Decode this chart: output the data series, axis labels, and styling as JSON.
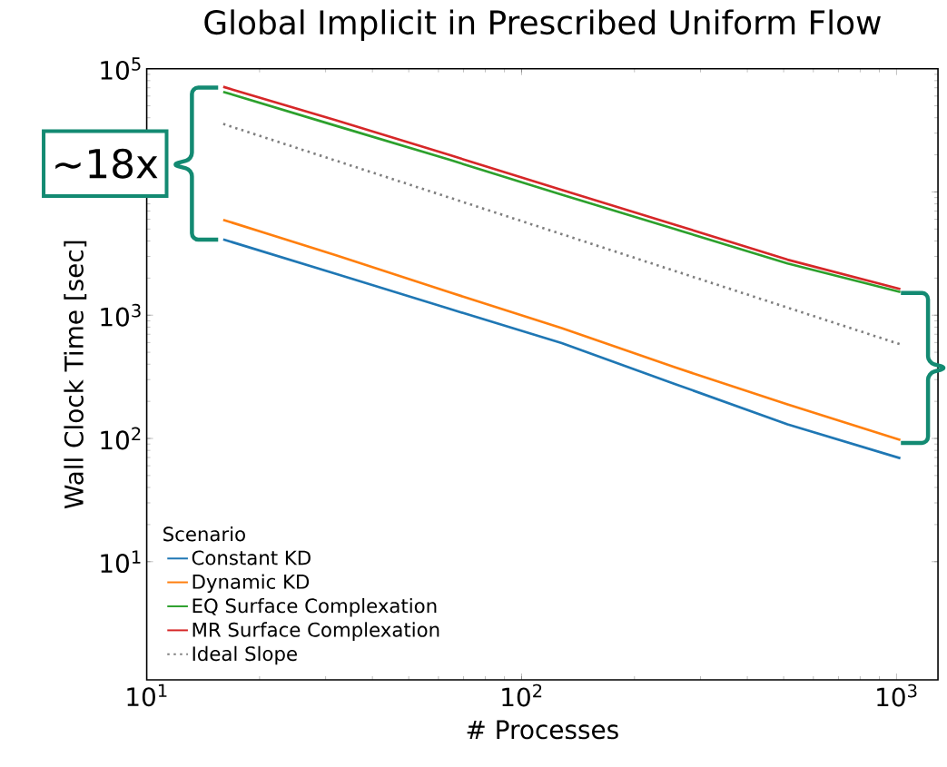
{
  "chart_data": {
    "type": "line",
    "title": "Global Implicit in Prescribed Uniform Flow",
    "xlabel": "# Processes",
    "ylabel": "Wall Clock Time [sec]",
    "legend_title": "Scenario",
    "legend": "bottom left",
    "log": "xy",
    "grid": false,
    "marker": "none",
    "x": [
      16,
      32,
      64,
      128,
      256,
      512,
      1024
    ],
    "xlim": [
      10,
      1290
    ],
    "ylim": [
      1.1,
      100000
    ],
    "xticks": [
      {
        "value": 10,
        "label": "10$^{1}$"
      },
      {
        "value": 100,
        "label": "10$^{2}$"
      },
      {
        "value": 1000,
        "label": "10$^{3}$"
      }
    ],
    "yticks": [
      {
        "value": 10,
        "label": "10$^{1}$"
      },
      {
        "value": 100,
        "label": "10$^{2}$"
      },
      {
        "value": 1000,
        "label": "10$^{3}$"
      },
      {
        "value": 10000,
        "label": null
      },
      {
        "value": 100000,
        "label": "10$^{5}$"
      }
    ],
    "series": [
      {
        "name": "Constant KD",
        "color": "#1f77b4",
        "values": [
          4120,
          2160,
          1130,
          593,
          277,
          130,
          69
        ]
      },
      {
        "name": "Dynamic KD",
        "color": "#ff7f0e",
        "values": [
          5940,
          3060,
          1540,
          785,
          378,
          189,
          97
        ]
      },
      {
        "name": "EQ Surface Complexation",
        "color": "#2ca02c",
        "values": [
          64900,
          34400,
          18300,
          9500,
          5000,
          2630,
          1540
        ]
      },
      {
        "name": "MR Surface Complexation",
        "color": "#d62728",
        "values": [
          71300,
          38100,
          20000,
          10400,
          5430,
          2820,
          1630
        ]
      },
      {
        "name": "Ideal Slope",
        "color": "#7f7f7f",
        "line_style": "dotted",
        "x": [
          16,
          1024
        ],
        "values": [
          35600,
          580
        ]
      }
    ],
    "annotations": [
      "~18x"
    ]
  }
}
